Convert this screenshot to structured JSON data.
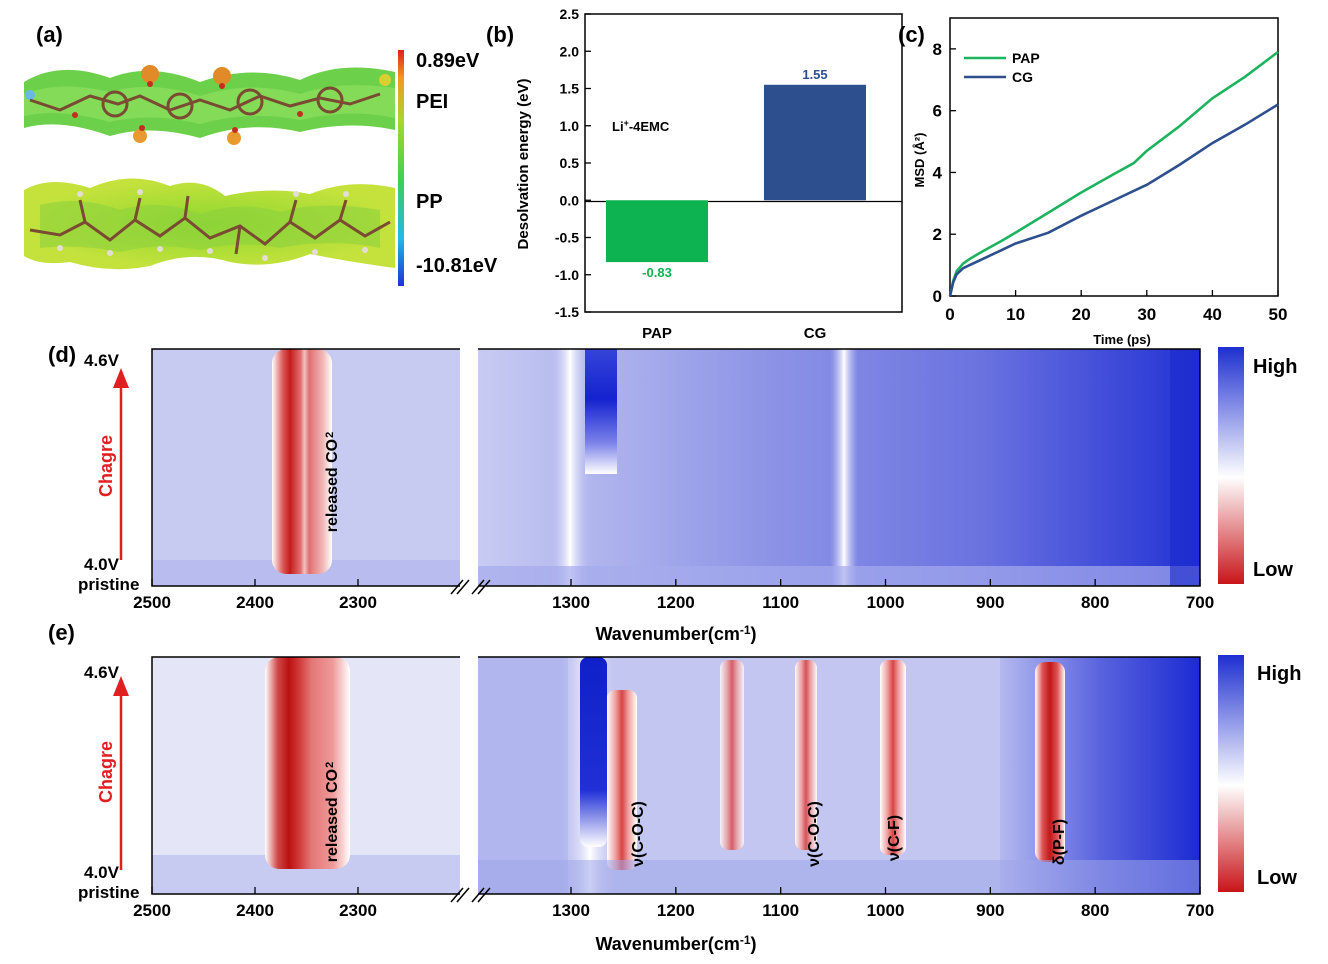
{
  "panel_a": {
    "label": "(a)",
    "scale_max": "0.89eV",
    "scale_min": "-10.81eV",
    "top_name": "PEI",
    "bottom_name": "PP"
  },
  "colorbar_d": {
    "high": "High",
    "low": "Low"
  },
  "colorbar_e": {
    "high": "High",
    "low": "Low"
  },
  "chart_data": [
    {
      "panel": "(b)",
      "type": "bar",
      "categories": [
        "PAP",
        "CG"
      ],
      "values": [
        -0.83,
        1.55
      ],
      "value_labels": [
        "-0.83",
        "1.55"
      ],
      "colors": [
        "#0db350",
        "#2d4f8e"
      ],
      "ylabel": "Desolvation energy (eV)",
      "ylim": [
        -1.5,
        2.5
      ],
      "yticks": [
        "-1.5",
        "-1.0",
        "-0.5",
        "0.0",
        "0.5",
        "1.0",
        "1.5",
        "2.0",
        "2.5"
      ],
      "annotation": "Li",
      "annotation_sup": "+",
      "annotation_rest": "-4EMC"
    },
    {
      "panel": "(c)",
      "type": "line",
      "xlabel": "Time (ps)",
      "ylabel": "MSD (Å²)",
      "xlim": [
        0,
        50
      ],
      "ylim": [
        0,
        9
      ],
      "xticks": [
        "0",
        "10",
        "20",
        "30",
        "40",
        "50"
      ],
      "yticks": [
        "0",
        "2",
        "4",
        "6",
        "8"
      ],
      "legend_position": "top-left",
      "series": [
        {
          "name": "PAP",
          "color": "#1db35e",
          "x": [
            0,
            0.5,
            1,
            2,
            3,
            5,
            8,
            10,
            15,
            20,
            25,
            28,
            30,
            35,
            40,
            45,
            50
          ],
          "y": [
            0,
            0.5,
            0.8,
            1.05,
            1.2,
            1.45,
            1.8,
            2.05,
            2.7,
            3.35,
            3.95,
            4.3,
            4.7,
            5.5,
            6.4,
            7.1,
            7.9
          ]
        },
        {
          "name": "CG",
          "color": "#2d4f8e",
          "x": [
            0,
            0.5,
            1,
            2,
            3,
            5,
            8,
            10,
            15,
            20,
            25,
            28,
            30,
            35,
            40,
            45,
            50
          ],
          "y": [
            0,
            0.45,
            0.7,
            0.9,
            1.0,
            1.2,
            1.5,
            1.7,
            2.05,
            2.6,
            3.1,
            3.4,
            3.6,
            4.25,
            4.95,
            5.55,
            6.2
          ]
        }
      ]
    },
    {
      "panel": "(d)",
      "type": "heatmap",
      "xlabel": "Wavenumber(cm",
      "xlabel_sup": "-1",
      "xlabel_close": ")",
      "x_ticks_left": [
        "2500",
        "2400",
        "2300"
      ],
      "x_ticks_right": [
        "1300",
        "1200",
        "1100",
        "1000",
        "900",
        "800",
        "700"
      ],
      "y_top": "4.6V",
      "y_bottom": "4.0V",
      "y_base": "pristine",
      "y_arrow_label": "Chagre",
      "annotations": [
        {
          "text": "released CO",
          "sub": "2",
          "x": 2328
        }
      ]
    },
    {
      "panel": "(e)",
      "type": "heatmap",
      "xlabel": "Wavenumber(cm",
      "xlabel_sup": "-1",
      "xlabel_close": ")",
      "x_ticks_left": [
        "2500",
        "2400",
        "2300"
      ],
      "x_ticks_right": [
        "1300",
        "1200",
        "1100",
        "1000",
        "900",
        "800",
        "700"
      ],
      "y_top": "4.6V",
      "y_bottom": "4.0V",
      "y_base": "pristine",
      "y_arrow_label": "Chagre",
      "annotations": [
        {
          "text": "released CO",
          "sub": "2",
          "x": 2328
        },
        {
          "text": "ν(C-O-C)",
          "x": 1258
        },
        {
          "text": "ν(C-O-C)",
          "x": 1083
        },
        {
          "text": "ν(C-F)",
          "x": 1003
        },
        {
          "text": "δ(P-F)",
          "x": 847
        }
      ]
    }
  ]
}
